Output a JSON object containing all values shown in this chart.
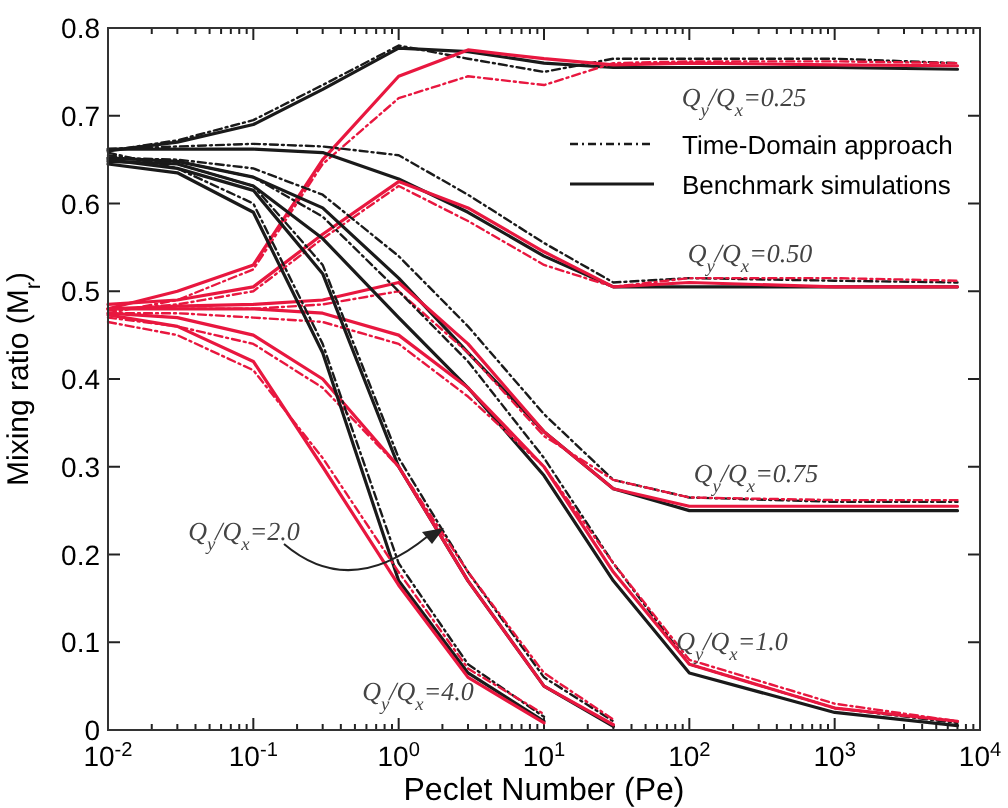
{
  "chart_data": {
    "type": "line",
    "xlabel": "Peclet Number (Pe)",
    "ylabel": "Mixing ratio (M$_{r}$)",
    "log": "x",
    "grid": false,
    "legend": "top right",
    "xlim": [
      0.01,
      10000
    ],
    "ylim": [
      0,
      0.8
    ],
    "xticks": [
      {
        "value": 0.01,
        "label": "10$^{-2}$"
      },
      {
        "value": 0.02,
        "label": null
      },
      {
        "value": 0.03,
        "label": null
      },
      {
        "value": 0.04,
        "label": null
      },
      {
        "value": 0.05,
        "label": null
      },
      {
        "value": 0.06,
        "label": null
      },
      {
        "value": 0.07,
        "label": null
      },
      {
        "value": 0.08,
        "label": null
      },
      {
        "value": 0.09,
        "label": null
      },
      {
        "value": 0.1,
        "label": "10$^{-1}$"
      },
      {
        "value": 0.2,
        "label": null
      },
      {
        "value": 0.3,
        "label": null
      },
      {
        "value": 0.4,
        "label": null
      },
      {
        "value": 0.5,
        "label": null
      },
      {
        "value": 0.6,
        "label": null
      },
      {
        "value": 0.7,
        "label": null
      },
      {
        "value": 0.8,
        "label": null
      },
      {
        "value": 0.9,
        "label": null
      },
      {
        "value": 1,
        "label": "10$^{0}$"
      },
      {
        "value": 2,
        "label": null
      },
      {
        "value": 3,
        "label": null
      },
      {
        "value": 4,
        "label": null
      },
      {
        "value": 5,
        "label": null
      },
      {
        "value": 6,
        "label": null
      },
      {
        "value": 7,
        "label": null
      },
      {
        "value": 8,
        "label": null
      },
      {
        "value": 9,
        "label": null
      },
      {
        "value": 10,
        "label": "10$^{1}$"
      },
      {
        "value": 20,
        "label": null
      },
      {
        "value": 30,
        "label": null
      },
      {
        "value": 40,
        "label": null
      },
      {
        "value": 50,
        "label": null
      },
      {
        "value": 60,
        "label": null
      },
      {
        "value": 70,
        "label": null
      },
      {
        "value": 80,
        "label": null
      },
      {
        "value": 90,
        "label": null
      },
      {
        "value": 100,
        "label": "10$^{2}$"
      },
      {
        "value": 200,
        "label": null
      },
      {
        "value": 300,
        "label": null
      },
      {
        "value": 400,
        "label": null
      },
      {
        "value": 500,
        "label": null
      },
      {
        "value": 600,
        "label": null
      },
      {
        "value": 700,
        "label": null
      },
      {
        "value": 800,
        "label": null
      },
      {
        "value": 900,
        "label": null
      },
      {
        "value": 1000,
        "label": "10$^{3}$"
      },
      {
        "value": 2000,
        "label": null
      },
      {
        "value": 3000,
        "label": null
      },
      {
        "value": 4000,
        "label": null
      },
      {
        "value": 5000,
        "label": null
      },
      {
        "value": 6000,
        "label": null
      },
      {
        "value": 7000,
        "label": null
      },
      {
        "value": 8000,
        "label": null
      },
      {
        "value": 9000,
        "label": null
      },
      {
        "value": 10000,
        "label": "10$^{4}$"
      }
    ],
    "yticks": [
      0,
      0.1,
      0.2,
      0.3,
      0.4,
      0.5,
      0.6,
      0.7,
      0.8
    ],
    "x": [
      0.01,
      0.03,
      0.1,
      0.3,
      1,
      3,
      10,
      30,
      100,
      1000,
      7000
    ],
    "series": [
      {
        "name": "Time-Domain approach",
        "color": "#1a1a1a",
        "line_style": "dashed",
        "values": [
          0.66,
          0.672,
          0.695,
          0.735,
          0.78,
          0.765,
          0.75,
          0.765,
          0.765,
          0.765,
          0.76
        ]
      },
      {
        "name": "Benchmark simulations",
        "color": "#1a1a1a",
        "line_style": "solid",
        "values": [
          0.66,
          0.67,
          0.69,
          0.73,
          0.777,
          0.773,
          0.76,
          0.755,
          0.755,
          0.755,
          0.753
        ]
      },
      {
        "color": "#e8173f",
        "line_style": "solid",
        "values": [
          0.48,
          0.5,
          0.53,
          0.65,
          0.745,
          0.775,
          0.765,
          0.758,
          0.76,
          0.758,
          0.757
        ]
      },
      {
        "color": "#e8173f",
        "line_style": "dashed",
        "values": [
          0.475,
          0.49,
          0.525,
          0.645,
          0.72,
          0.745,
          0.735,
          0.76,
          0.762,
          0.762,
          0.76
        ]
      },
      {
        "color": "#1a1a1a",
        "line_style": "solid",
        "values": [
          0.662,
          0.662,
          0.662,
          0.658,
          0.628,
          0.59,
          0.54,
          0.505,
          0.505,
          0.505,
          0.505
        ]
      },
      {
        "color": "#1a1a1a",
        "line_style": "dashed",
        "values": [
          0.662,
          0.665,
          0.668,
          0.665,
          0.655,
          0.61,
          0.555,
          0.51,
          0.515,
          0.512,
          0.51
        ]
      },
      {
        "color": "#e8173f",
        "line_style": "solid",
        "values": [
          0.485,
          0.49,
          0.505,
          0.565,
          0.625,
          0.595,
          0.545,
          0.505,
          0.51,
          0.505,
          0.505
        ]
      },
      {
        "color": "#e8173f",
        "line_style": "dashed",
        "values": [
          0.478,
          0.485,
          0.5,
          0.56,
          0.62,
          0.58,
          0.53,
          0.505,
          0.515,
          0.515,
          0.512
        ]
      },
      {
        "color": "#1a1a1a",
        "line_style": "solid",
        "values": [
          0.652,
          0.648,
          0.63,
          0.595,
          0.515,
          0.43,
          0.34,
          0.275,
          0.25,
          0.25,
          0.25
        ]
      },
      {
        "color": "#1a1a1a",
        "line_style": "dashed",
        "values": [
          0.652,
          0.65,
          0.64,
          0.61,
          0.54,
          0.46,
          0.36,
          0.285,
          0.265,
          0.26,
          0.26
        ]
      },
      {
        "color": "#e8173f",
        "line_style": "solid",
        "values": [
          0.48,
          0.483,
          0.485,
          0.49,
          0.51,
          0.44,
          0.34,
          0.275,
          0.255,
          0.255,
          0.255
        ]
      },
      {
        "color": "#e8173f",
        "line_style": "dashed",
        "values": [
          0.48,
          0.48,
          0.48,
          0.485,
          0.5,
          0.43,
          0.335,
          0.285,
          0.265,
          0.262,
          0.262
        ]
      },
      {
        "color": "#1a1a1a",
        "line_style": "solid",
        "values": [
          0.648,
          0.645,
          0.62,
          0.56,
          0.47,
          0.39,
          0.29,
          0.17,
          0.065,
          0.02,
          0.005
        ]
      },
      {
        "color": "#1a1a1a",
        "line_style": "dashed",
        "values": [
          0.652,
          0.648,
          0.63,
          0.585,
          0.5,
          0.42,
          0.31,
          0.19,
          0.075,
          0.025,
          0.008
        ]
      },
      {
        "color": "#e8173f",
        "line_style": "solid",
        "values": [
          0.48,
          0.48,
          0.48,
          0.475,
          0.45,
          0.39,
          0.3,
          0.18,
          0.075,
          0.025,
          0.01
        ]
      },
      {
        "color": "#e8173f",
        "line_style": "dashed",
        "values": [
          0.475,
          0.475,
          0.47,
          0.465,
          0.44,
          0.38,
          0.3,
          0.19,
          0.08,
          0.03,
          0.01
        ]
      },
      {
        "color": "#1a1a1a",
        "line_style": "solid",
        "values": [
          0.65,
          0.64,
          0.615,
          0.52,
          0.3,
          0.17,
          0.05,
          0.004,
          null,
          null,
          null
        ]
      },
      {
        "color": "#1a1a1a",
        "line_style": "dashed",
        "values": [
          0.655,
          0.645,
          0.62,
          0.53,
          0.31,
          0.18,
          0.06,
          0.01,
          null,
          null,
          null
        ]
      },
      {
        "color": "#e8173f",
        "line_style": "solid",
        "values": [
          0.475,
          0.47,
          0.45,
          0.4,
          0.3,
          0.17,
          0.05,
          0.006,
          null,
          null,
          null
        ]
      },
      {
        "color": "#e8173f",
        "line_style": "dashed",
        "values": [
          0.47,
          0.46,
          0.44,
          0.39,
          0.3,
          0.18,
          0.065,
          0.012,
          null,
          null,
          null
        ]
      },
      {
        "color": "#1a1a1a",
        "line_style": "solid",
        "values": [
          0.645,
          0.635,
          0.59,
          0.43,
          0.17,
          0.065,
          0.01,
          null,
          null,
          null,
          null
        ]
      },
      {
        "color": "#1a1a1a",
        "line_style": "dashed",
        "values": [
          0.658,
          0.64,
          0.6,
          0.44,
          0.19,
          0.075,
          0.015,
          null,
          null,
          null,
          null
        ]
      },
      {
        "color": "#e8173f",
        "line_style": "solid",
        "values": [
          0.473,
          0.46,
          0.42,
          0.3,
          0.165,
          0.06,
          0.008,
          null,
          null,
          null,
          null
        ]
      },
      {
        "color": "#e8173f",
        "line_style": "dashed",
        "values": [
          0.465,
          0.45,
          0.41,
          0.31,
          0.18,
          0.07,
          0.018,
          null,
          null,
          null,
          null
        ]
      }
    ],
    "annotations": [
      "Q$_{y}$/Q$_{x}$=0.25",
      "Q$_{y}$/Q$_{x}$=0.50",
      "Q$_{y}$/Q$_{x}$=0.75",
      "Q$_{y}$/Q$_{x}$=1.0",
      "Q$_{y}$/Q$_{x}$=2.0",
      "Q$_{y}$/Q$_{x}$=4.0"
    ]
  }
}
